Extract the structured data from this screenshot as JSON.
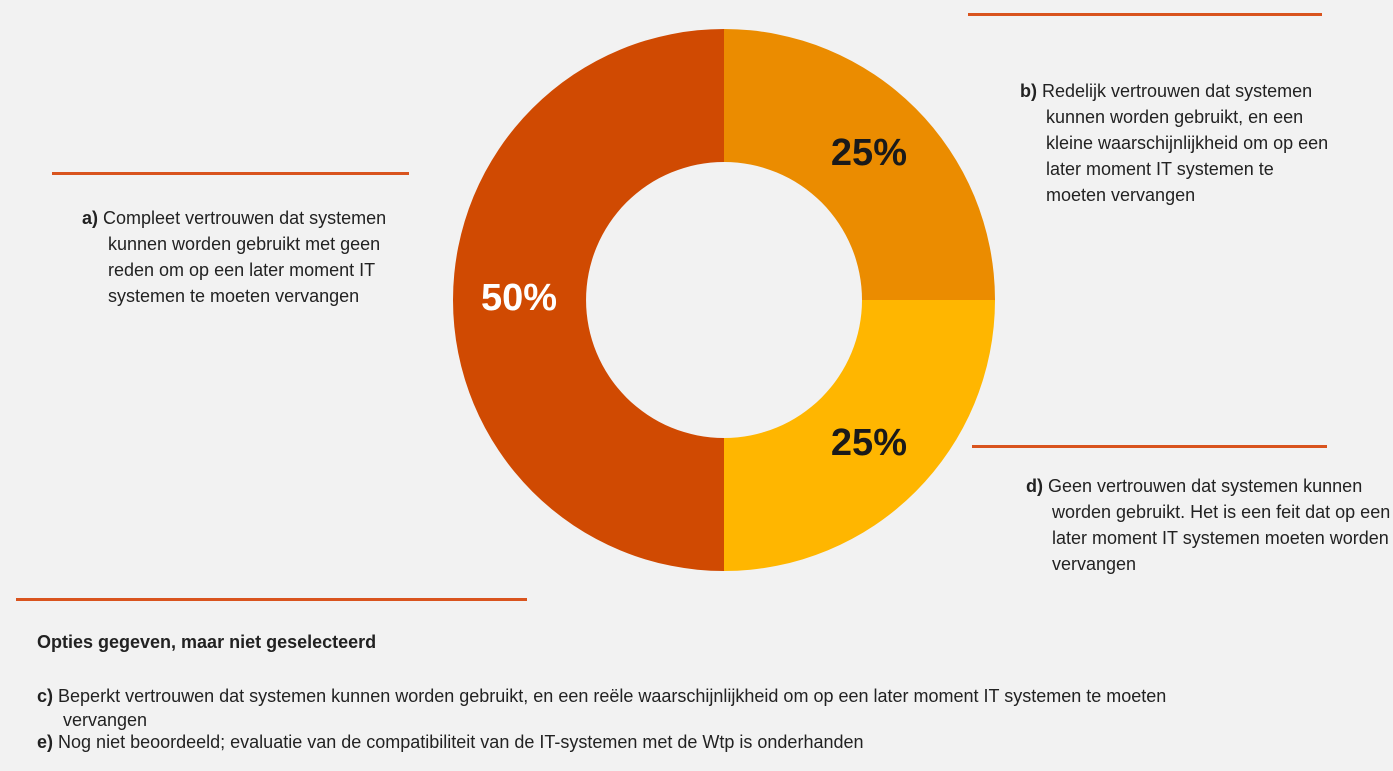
{
  "chart_data": {
    "type": "pie",
    "categories": [
      "b)",
      "d)",
      "a)"
    ],
    "descriptions": [
      "Redelijk vertrouwen dat systemen kunnen worden gebruikt, en een kleine waarschijnlijkheid om op een later moment IT systemen te moeten vervangen",
      "Geen vertrouwen dat systemen kunnen worden gebruikt. Het is een feit dat op een later moment IT systemen moeten worden vervangen",
      "Compleet vertrouwen dat systemen kunnen worden gebruikt met geen reden om op een later moment IT systemen te moeten vervangen"
    ],
    "values": [
      25,
      25,
      50
    ],
    "value_labels": [
      "25%",
      "25%",
      "50%"
    ],
    "colors": [
      "#eb8c00",
      "#ffb600",
      "#d04a02"
    ],
    "value_label_colors": [
      "#1a1a1a",
      "#1a1a1a",
      "#ffffff"
    ]
  },
  "unselected": {
    "title": "Opties gegeven, maar niet geselecteerd",
    "options": [
      {
        "key": "c)",
        "text": "Beperkt vertrouwen dat systemen kunnen worden gebruikt, en een reële waarschijnlijkheid om op een later moment IT systemen te moeten vervangen"
      },
      {
        "key": "e)",
        "text": "Nog niet beoordeeld; evaluatie van de compatibiliteit van de IT-systemen met de Wtp is onderhanden"
      }
    ]
  }
}
